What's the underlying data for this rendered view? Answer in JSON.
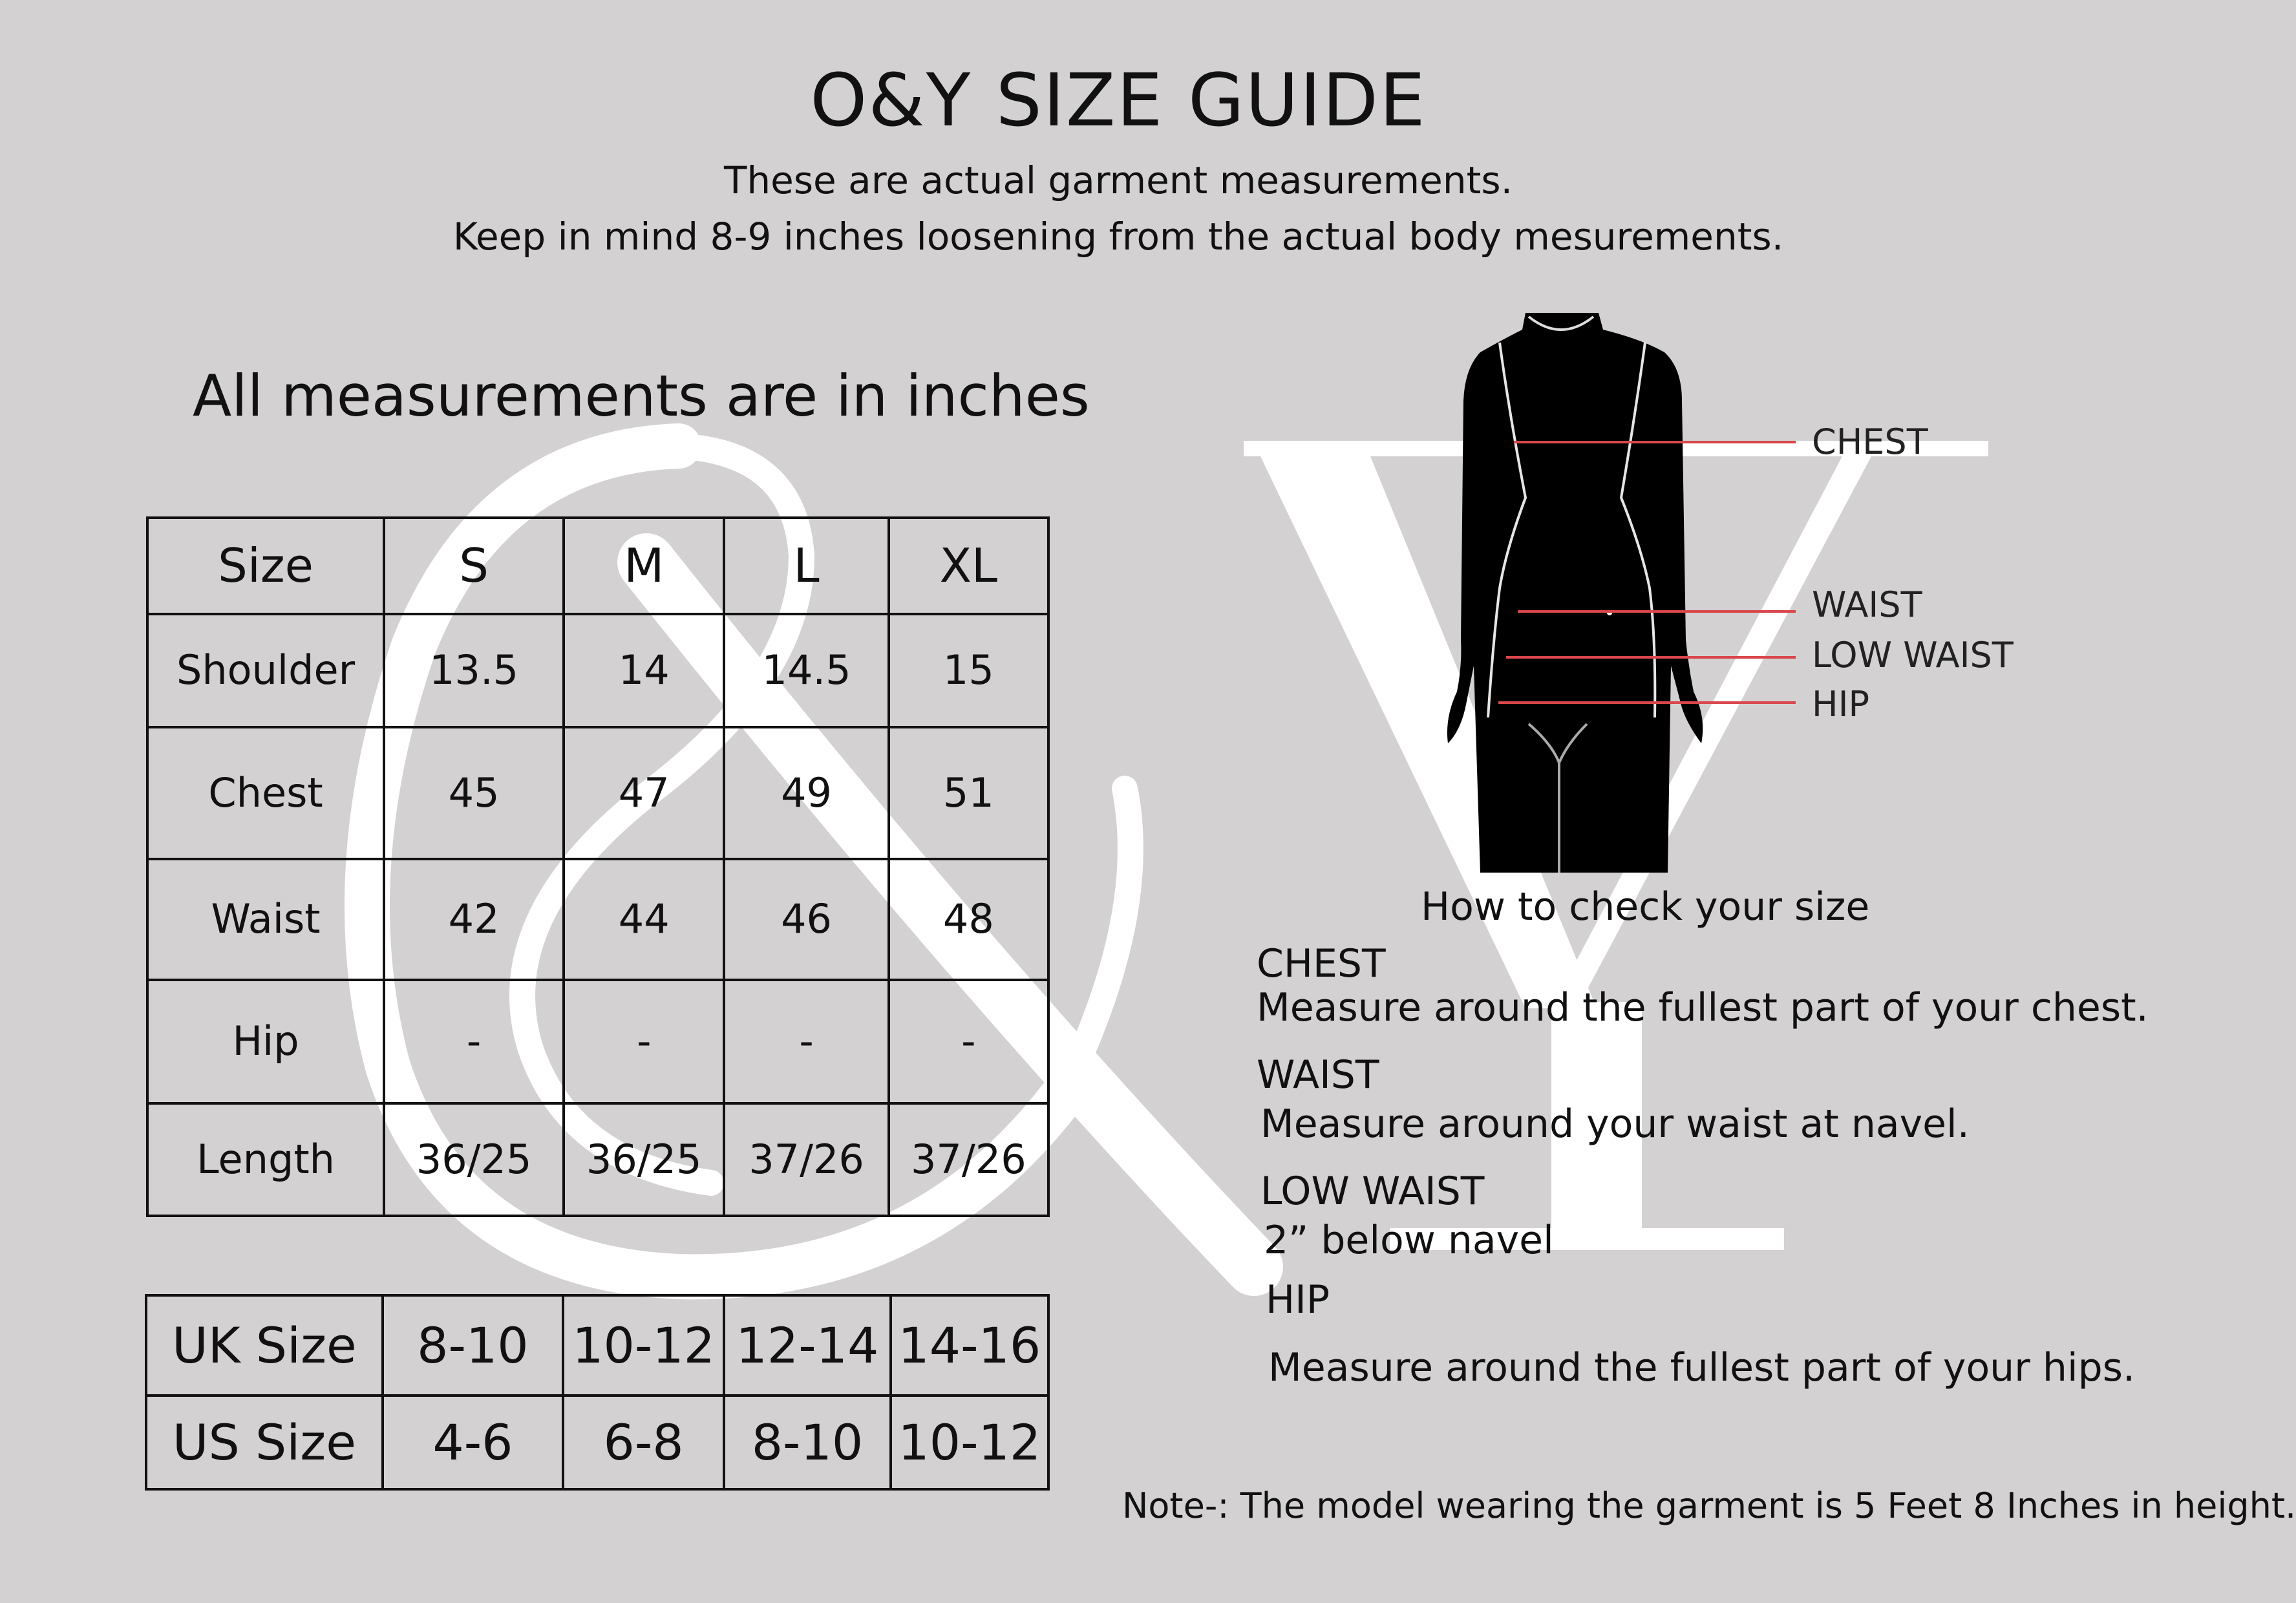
{
  "header": {
    "title": "O&Y SIZE GUIDE",
    "subtitle_1": "These are actual garment measurements.",
    "subtitle_2": "Keep in mind 8-9 inches loosening from the actual  body mesurements."
  },
  "watermark": {
    "text_1": "&",
    "text_2": "Y",
    "color": "#ffffff"
  },
  "units_note": "All measurements are in inches",
  "measurements_table": {
    "headers": [
      "Size",
      "S",
      "M",
      "L",
      "XL"
    ],
    "rows": [
      [
        "Shoulder",
        "13.5",
        "14",
        "14.5",
        "15"
      ],
      [
        "Chest",
        "45",
        "47",
        "49",
        "51"
      ],
      [
        "Waist",
        "42",
        "44",
        "46",
        "48"
      ],
      [
        "Hip",
        "-",
        "-",
        "-",
        "-"
      ],
      [
        "Length",
        "36/25",
        "36/25",
        "37/26",
        "37/26"
      ]
    ]
  },
  "conversion_table": {
    "rows": [
      [
        "UK Size",
        "8-10",
        "10-12",
        "12-14",
        "14-16"
      ],
      [
        "US Size",
        "4-6",
        "6-8",
        "8-10",
        "10-12"
      ]
    ]
  },
  "figure": {
    "labels": [
      "CHEST",
      "WAIST",
      "LOW WAIST",
      "HIP"
    ],
    "line_color": "#d9474a"
  },
  "howto": {
    "title": "How to check your size",
    "items": [
      {
        "name": "CHEST",
        "desc": "Measure around the fullest part of your chest."
      },
      {
        "name": "WAIST",
        "desc": "Measure around your waist at navel."
      },
      {
        "name": "LOW WAIST",
        "desc": "2” below navel"
      },
      {
        "name": "HIP",
        "desc": "Measure around the fullest part of your hips."
      }
    ]
  },
  "note": "Note-: The model wearing the garment is 5 Feet 8 Inches in height."
}
